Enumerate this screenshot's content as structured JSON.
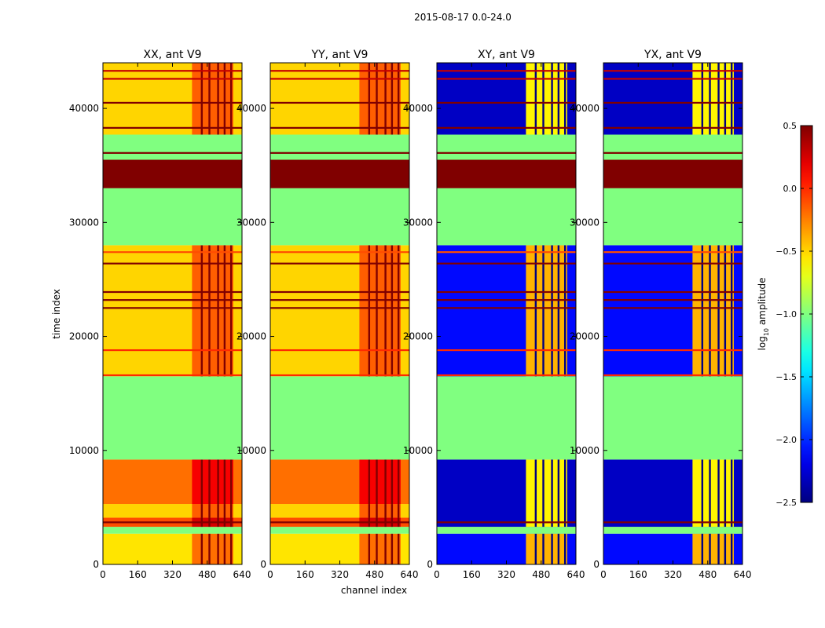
{
  "chart_data": {
    "type": "heatmap",
    "suptitle": "2015-08-17 0.0-24.0",
    "xlabel": "channel index",
    "ylabel": "time index",
    "xlim": [
      0,
      640
    ],
    "ylim": [
      0,
      44000
    ],
    "x_ticks": [
      0,
      160,
      320,
      480,
      640
    ],
    "y_ticks": [
      0,
      10000,
      20000,
      30000,
      40000
    ],
    "colorbar": {
      "label_prefix": "log",
      "label_sub": "10",
      "label_suffix": " amplitude",
      "range": [
        -2.5,
        0.5
      ],
      "ticks": [
        0.5,
        0.0,
        -0.5,
        -1.0,
        -1.5,
        -2.0,
        -2.5
      ],
      "tick_labels": [
        "0.5",
        "0.0",
        "−0.5",
        "−1.0",
        "−1.5",
        "−2.0",
        "−2.5"
      ],
      "colormap": "jet"
    },
    "flagged_value": -1.0,
    "channel_features": {
      "strong_band_start": 410,
      "strong_band_end": 600,
      "stripe_channels": [
        455,
        490,
        530,
        560,
        590
      ]
    },
    "panels": [
      {
        "title": "XX, ant V9",
        "segments": [
          {
            "t": [
              0,
              2700
            ],
            "value": -0.55
          },
          {
            "t": [
              2700,
              3300
            ],
            "value": -1.0
          },
          {
            "t": [
              3300,
              4100
            ],
            "value": -0.1
          },
          {
            "t": [
              4100,
              5300
            ],
            "value": -0.5
          },
          {
            "t": [
              5300,
              9200
            ],
            "value": -0.2
          },
          {
            "t": [
              9200,
              16500
            ],
            "value": -1.0
          },
          {
            "t": [
              16500,
              28000
            ],
            "value": -0.5
          },
          {
            "t": [
              28000,
              33000
            ],
            "value": -1.0
          },
          {
            "t": [
              33000,
              35500
            ],
            "value": 0.5
          },
          {
            "t": [
              35500,
              37700
            ],
            "value": -1.0
          },
          {
            "t": [
              37700,
              44000
            ],
            "value": -0.5
          }
        ],
        "band_boost": 0.35
      },
      {
        "title": "YY, ant V9",
        "segments": [
          {
            "t": [
              0,
              2700
            ],
            "value": -0.55
          },
          {
            "t": [
              2700,
              3300
            ],
            "value": -1.0
          },
          {
            "t": [
              3300,
              4100
            ],
            "value": -0.1
          },
          {
            "t": [
              4100,
              5300
            ],
            "value": -0.5
          },
          {
            "t": [
              5300,
              9200
            ],
            "value": -0.2
          },
          {
            "t": [
              9200,
              16500
            ],
            "value": -1.0
          },
          {
            "t": [
              16500,
              28000
            ],
            "value": -0.5
          },
          {
            "t": [
              28000,
              33000
            ],
            "value": -1.0
          },
          {
            "t": [
              33000,
              35500
            ],
            "value": 0.5
          },
          {
            "t": [
              35500,
              37700
            ],
            "value": -1.0
          },
          {
            "t": [
              37700,
              44000
            ],
            "value": -0.5
          }
        ],
        "band_boost": 0.35
      },
      {
        "title": "XY, ant V9",
        "segments": [
          {
            "t": [
              0,
              2700
            ],
            "value": -2.1
          },
          {
            "t": [
              2700,
              3300
            ],
            "value": -1.0
          },
          {
            "t": [
              3300,
              9200
            ],
            "value": -2.3
          },
          {
            "t": [
              9200,
              16500
            ],
            "value": -1.0
          },
          {
            "t": [
              16500,
              28000
            ],
            "value": -2.1
          },
          {
            "t": [
              28000,
              33000
            ],
            "value": -1.0
          },
          {
            "t": [
              33000,
              35500
            ],
            "value": 0.5
          },
          {
            "t": [
              35500,
              37700
            ],
            "value": -1.0
          },
          {
            "t": [
              37700,
              44000
            ],
            "value": -2.3
          }
        ],
        "band_boost": 1.7
      },
      {
        "title": "YX, ant V9",
        "segments": [
          {
            "t": [
              0,
              2700
            ],
            "value": -2.1
          },
          {
            "t": [
              2700,
              3300
            ],
            "value": -1.0
          },
          {
            "t": [
              3300,
              9200
            ],
            "value": -2.3
          },
          {
            "t": [
              9200,
              16500
            ],
            "value": -1.0
          },
          {
            "t": [
              16500,
              28000
            ],
            "value": -2.1
          },
          {
            "t": [
              28000,
              33000
            ],
            "value": -1.0
          },
          {
            "t": [
              33000,
              35500
            ],
            "value": 0.5
          },
          {
            "t": [
              35500,
              37700
            ],
            "value": -1.0
          },
          {
            "t": [
              37700,
              44000
            ],
            "value": -2.3
          }
        ],
        "band_boost": 1.7
      }
    ],
    "horizontal_lines": [
      {
        "t": 3700,
        "value": 0.5
      },
      {
        "t": 16600,
        "value": 0.0
      },
      {
        "t": 18800,
        "value": 0.0
      },
      {
        "t": 22500,
        "value": 0.5
      },
      {
        "t": 23200,
        "value": 0.5
      },
      {
        "t": 23900,
        "value": 0.5
      },
      {
        "t": 26400,
        "value": 0.5
      },
      {
        "t": 27400,
        "value": -0.1
      },
      {
        "t": 36100,
        "value": 0.5
      },
      {
        "t": 38300,
        "value": 0.5
      },
      {
        "t": 40500,
        "value": 0.5
      },
      {
        "t": 42600,
        "value": 0.3
      },
      {
        "t": 43300,
        "value": 0.3
      }
    ]
  }
}
